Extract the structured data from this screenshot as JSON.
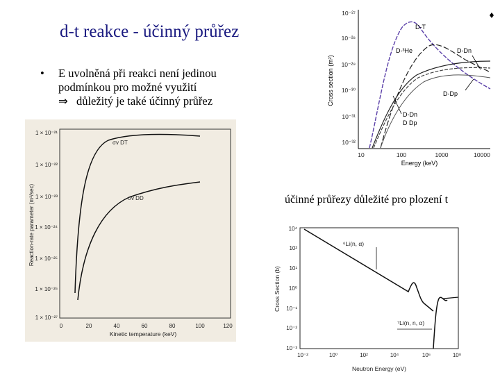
{
  "slide": {
    "title": "d-t reakce - účinný průřez",
    "bullet": {
      "marker": "•",
      "line1": "E uvolněná při reakci není jedinou",
      "line2": "podmínkou pro možné využití",
      "arrow": "⇒",
      "line3": "důležitý je také účinný průřez"
    },
    "caption": "účinné průřezy důležité pro plození t"
  },
  "fig_cross_section": {
    "ylabel": "Cross section (m²)",
    "xlabel": "Energy (keV)",
    "yticks": [
      "10⁻²⁷",
      "10⁻²⁸",
      "10⁻²⁹",
      "10⁻³⁰",
      "10⁻³¹",
      "10⁻³²"
    ],
    "xticks": [
      "10",
      "100",
      "1000",
      "10000"
    ],
    "labels": {
      "dt": "D-T",
      "dhe": "D-³He",
      "ddn_top": "D-Dn",
      "ddp": "D-Dp",
      "ddn": "D-Dn",
      "ddp2": "D Dp"
    },
    "colors": {
      "dt": "#5a3fa8"
    }
  },
  "fig_reaction_rate": {
    "ylabel": "Reaction-rate parameter (m³/sec)",
    "xlabel": "Kinetic temperature (keV)",
    "yticks": [
      "1 × 10⁻²¹",
      "1 × 10⁻²²",
      "1 × 10⁻²³",
      "1 × 10⁻²⁴",
      "1 × 10⁻²⁵",
      "1 × 10⁻²⁶",
      "1 × 10⁻²⁷"
    ],
    "xticks": [
      "0",
      "20",
      "40",
      "60",
      "80",
      "100",
      "120"
    ],
    "labels": {
      "dt": "σv DT",
      "dd": "σv DD"
    }
  },
  "fig_lithium": {
    "ylabel": "Cross Section (b)",
    "xlabel": "Neutron Energy (eV)",
    "yticks": [
      "10⁴",
      "10²",
      "10¹",
      "10⁰",
      "10⁻¹",
      "10⁻²",
      "10⁻³"
    ],
    "xticks": [
      "10⁻²",
      "10⁰",
      "10²",
      "10⁴",
      "10⁶",
      "10⁸"
    ],
    "labels": {
      "li6": "⁶Li(n, α)",
      "li7": "⁷Li(n, n, α)"
    }
  }
}
